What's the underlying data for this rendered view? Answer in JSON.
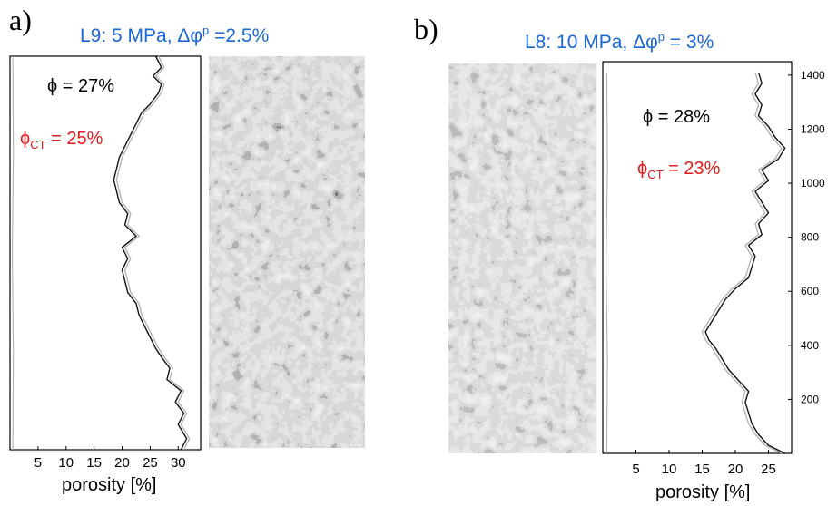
{
  "panels": [
    {
      "letter": "a)",
      "title_prefix": "L9: 5 MPa, Δφ",
      "title_sup": "p",
      "title_suffix": " =2.5%",
      "phi_label": "ϕ = 27%",
      "phi_ct_main": "ϕ",
      "phi_ct_sub": "CT",
      "phi_ct_value": " = 25%",
      "xlabel": "porosity [%]"
    },
    {
      "letter": "b)",
      "title_prefix": "L8: 10 MPa, Δφ",
      "title_sup": "p",
      "title_suffix": " = 3%",
      "phi_label": "ϕ = 28%",
      "phi_ct_main": "ϕ",
      "phi_ct_sub": "CT",
      "phi_ct_value": " = 23%",
      "xlabel": "porosity [%]"
    }
  ],
  "colors": {
    "title": "#1a66d6",
    "ct_annotation": "#e21c1c",
    "profile_black": "#111111",
    "profile_gray": "#b5b5b5"
  },
  "chart_data": [
    {
      "type": "line",
      "title": "L9: 5 MPa, Δφp =2.5%",
      "xlabel": "porosity [%]",
      "ylabel": "",
      "x_ticks": [
        5,
        10,
        15,
        20,
        25,
        30
      ],
      "xlim": [
        0,
        34
      ],
      "y_ticks": [],
      "ylim": [
        0,
        1400
      ],
      "orientation": "vertical-profile",
      "series": [
        {
          "color": "black",
          "points": [
            [
              30.5,
              0
            ],
            [
              31.5,
              40
            ],
            [
              30,
              90
            ],
            [
              31,
              130
            ],
            [
              29.5,
              170
            ],
            [
              30.5,
              210
            ],
            [
              28,
              250
            ],
            [
              28.5,
              290
            ],
            [
              27,
              330
            ],
            [
              26,
              360
            ],
            [
              25,
              400
            ],
            [
              24,
              440
            ],
            [
              23,
              480
            ],
            [
              22.5,
              520
            ],
            [
              21,
              560
            ],
            [
              20.5,
              600
            ],
            [
              20,
              640
            ],
            [
              21,
              680
            ],
            [
              20,
              720
            ],
            [
              22.5,
              760
            ],
            [
              20.5,
              800
            ],
            [
              21,
              840
            ],
            [
              19.5,
              880
            ],
            [
              19,
              920
            ],
            [
              18.5,
              960
            ],
            [
              19,
              1000
            ],
            [
              19.5,
              1040
            ],
            [
              20.5,
              1080
            ],
            [
              21.5,
              1120
            ],
            [
              22.5,
              1160
            ],
            [
              23.5,
              1200
            ],
            [
              25,
              1230
            ],
            [
              26.5,
              1270
            ],
            [
              27,
              1300
            ],
            [
              25.5,
              1330
            ],
            [
              27,
              1360
            ],
            [
              26,
              1400
            ]
          ]
        },
        {
          "color": "gray",
          "points": [
            [
              31,
              0
            ],
            [
              32,
              40
            ],
            [
              30.5,
              90
            ],
            [
              31.5,
              130
            ],
            [
              30,
              170
            ],
            [
              31,
              210
            ],
            [
              28.5,
              250
            ],
            [
              29,
              290
            ],
            [
              27.5,
              330
            ],
            [
              26.5,
              360
            ],
            [
              25.5,
              400
            ],
            [
              24.5,
              440
            ],
            [
              23.5,
              480
            ],
            [
              23,
              520
            ],
            [
              21.5,
              560
            ],
            [
              21,
              600
            ],
            [
              20.5,
              640
            ],
            [
              21.5,
              680
            ],
            [
              20.5,
              720
            ],
            [
              23,
              760
            ],
            [
              21,
              800
            ],
            [
              21.5,
              840
            ],
            [
              20,
              880
            ],
            [
              19.5,
              920
            ],
            [
              19,
              960
            ],
            [
              19.5,
              1000
            ],
            [
              20,
              1040
            ],
            [
              21,
              1080
            ],
            [
              22,
              1120
            ],
            [
              23,
              1160
            ],
            [
              24,
              1200
            ],
            [
              25.5,
              1230
            ],
            [
              27,
              1270
            ],
            [
              27.5,
              1300
            ],
            [
              26,
              1330
            ],
            [
              27.5,
              1360
            ],
            [
              26.5,
              1400
            ]
          ]
        },
        {
          "color": "gray-left-edge",
          "points": [
            [
              0.5,
              0
            ],
            [
              0.6,
              350
            ],
            [
              0.4,
              700
            ],
            [
              0.6,
              1050
            ],
            [
              0.5,
              1400
            ]
          ]
        }
      ]
    },
    {
      "type": "line",
      "title": "L8: 10 MPa, Δφp = 3%",
      "xlabel": "porosity [%]",
      "ylabel": "",
      "x_ticks": [
        5,
        10,
        15,
        20,
        25
      ],
      "xlim": [
        0,
        28.5
      ],
      "y_ticks": [
        200,
        400,
        600,
        800,
        1000,
        1200,
        1400
      ],
      "ylim": [
        0,
        1450
      ],
      "orientation": "vertical-profile",
      "series": [
        {
          "color": "black",
          "points": [
            [
              27.5,
              0
            ],
            [
              25,
              30
            ],
            [
              23.5,
              70
            ],
            [
              22.5,
              110
            ],
            [
              22,
              150
            ],
            [
              21.5,
              190
            ],
            [
              22,
              230
            ],
            [
              20.5,
              270
            ],
            [
              19,
              310
            ],
            [
              18,
              350
            ],
            [
              17,
              390
            ],
            [
              16,
              420
            ],
            [
              15.5,
              450
            ],
            [
              16.5,
              490
            ],
            [
              17.5,
              530
            ],
            [
              18.5,
              570
            ],
            [
              20,
              610
            ],
            [
              22,
              650
            ],
            [
              22.5,
              690
            ],
            [
              23,
              730
            ],
            [
              22,
              770
            ],
            [
              24,
              810
            ],
            [
              23.5,
              850
            ],
            [
              25,
              890
            ],
            [
              24,
              930
            ],
            [
              23,
              970
            ],
            [
              25,
              1010
            ],
            [
              24,
              1050
            ],
            [
              26.5,
              1090
            ],
            [
              27.5,
              1130
            ],
            [
              26,
              1170
            ],
            [
              25,
              1210
            ],
            [
              23.5,
              1250
            ],
            [
              24,
              1290
            ],
            [
              23,
              1330
            ],
            [
              24,
              1370
            ],
            [
              23.5,
              1410
            ]
          ]
        },
        {
          "color": "gray",
          "points": [
            [
              27,
              0
            ],
            [
              24.5,
              30
            ],
            [
              23,
              70
            ],
            [
              22,
              110
            ],
            [
              21.5,
              150
            ],
            [
              21,
              190
            ],
            [
              21.5,
              230
            ],
            [
              20,
              270
            ],
            [
              18.5,
              310
            ],
            [
              17.5,
              350
            ],
            [
              16.5,
              390
            ],
            [
              15.5,
              420
            ],
            [
              15,
              450
            ],
            [
              16,
              490
            ],
            [
              17,
              530
            ],
            [
              18,
              570
            ],
            [
              19.5,
              610
            ],
            [
              21.5,
              650
            ],
            [
              22,
              690
            ],
            [
              22.5,
              730
            ],
            [
              21.5,
              770
            ],
            [
              23.5,
              810
            ],
            [
              23,
              850
            ],
            [
              24.5,
              890
            ],
            [
              23.5,
              930
            ],
            [
              22.5,
              970
            ],
            [
              24.5,
              1010
            ],
            [
              23.5,
              1050
            ],
            [
              26,
              1090
            ],
            [
              27,
              1130
            ],
            [
              25.5,
              1170
            ],
            [
              24.5,
              1210
            ],
            [
              23,
              1250
            ],
            [
              23.5,
              1290
            ],
            [
              22.5,
              1330
            ],
            [
              23.5,
              1370
            ],
            [
              23,
              1410
            ]
          ]
        },
        {
          "color": "gray-left-edge",
          "points": [
            [
              0.6,
              0
            ],
            [
              0.7,
              350
            ],
            [
              0.5,
              700
            ],
            [
              0.7,
              1050
            ],
            [
              0.6,
              1410
            ]
          ]
        }
      ]
    }
  ]
}
